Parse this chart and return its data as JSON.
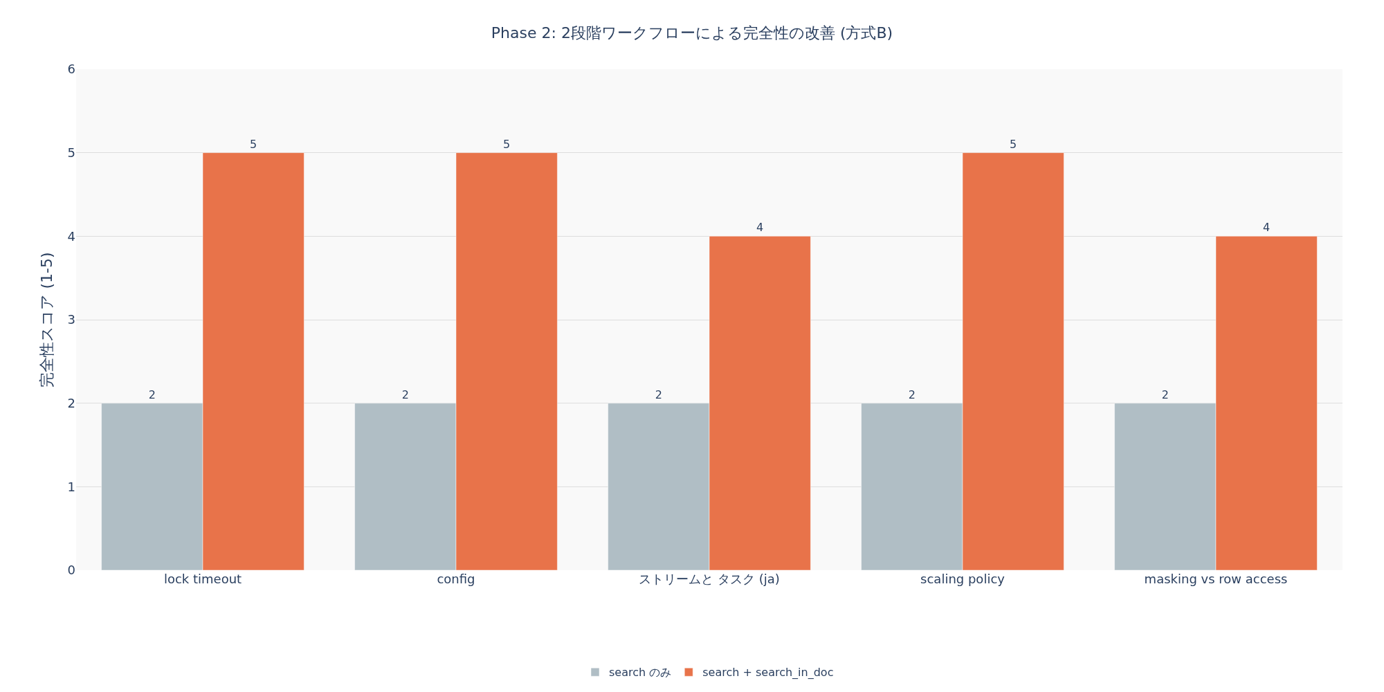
{
  "chart_data": {
    "type": "bar",
    "title": "Phase 2: 2段階ワークフローによる完全性の改善 (方式B)",
    "ylabel": "完全性スコア (1-5)",
    "categories": [
      "lock timeout",
      "config",
      "ストリームと タスク (ja)",
      "scaling policy",
      "masking vs row access"
    ],
    "series": [
      {
        "name": "search のみ",
        "color": "#b0bec5",
        "values": [
          2,
          2,
          2,
          2,
          2
        ]
      },
      {
        "name": "search + search_in_doc",
        "color": "#e8734a",
        "values": [
          5,
          5,
          4,
          5,
          4
        ]
      }
    ],
    "ylim": [
      0,
      6
    ],
    "yticks": [
      0,
      1,
      2,
      3,
      4,
      5,
      6
    ],
    "grid": "y",
    "legend": "bottom",
    "data_labels": true
  }
}
